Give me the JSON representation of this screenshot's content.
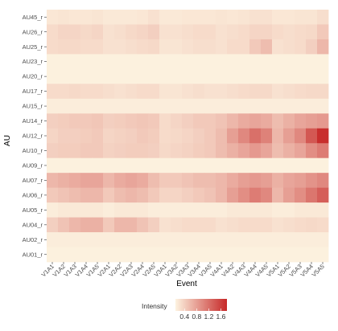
{
  "chart_data": {
    "type": "heatmap",
    "xlabel": "Event",
    "ylabel": "AU",
    "x_categories": [
      "V1A1",
      "V1A2",
      "V1A3",
      "V1A4",
      "V1A5",
      "V2A1",
      "V2A2",
      "V2A3",
      "V2A4",
      "V2A5",
      "V3A1",
      "V3A2",
      "V3A3",
      "V3A4",
      "V3A5",
      "V4A1",
      "V4A2",
      "V4A3",
      "V4A4",
      "V4A5",
      "V5A1",
      "V5A2",
      "V5A3",
      "V5A4",
      "V5A5"
    ],
    "y_categories": [
      "AU45_r",
      "AU26_r",
      "AU25_r",
      "AU23_r",
      "AU20_r",
      "AU17_r",
      "AU15_r",
      "AU14_r",
      "AU12_r",
      "AU10_r",
      "AU09_r",
      "AU07_r",
      "AU06_r",
      "AU05_r",
      "AU04_r",
      "AU02_r",
      "AU01_r"
    ],
    "values": [
      [
        0.2,
        0.22,
        0.2,
        0.2,
        0.22,
        0.18,
        0.18,
        0.18,
        0.2,
        0.25,
        0.18,
        0.18,
        0.2,
        0.2,
        0.2,
        0.22,
        0.2,
        0.22,
        0.25,
        0.25,
        0.2,
        0.2,
        0.22,
        0.22,
        0.28
      ],
      [
        0.3,
        0.35,
        0.35,
        0.32,
        0.35,
        0.25,
        0.28,
        0.32,
        0.35,
        0.4,
        0.25,
        0.25,
        0.28,
        0.3,
        0.3,
        0.25,
        0.28,
        0.3,
        0.35,
        0.35,
        0.3,
        0.28,
        0.3,
        0.32,
        0.45
      ],
      [
        0.3,
        0.32,
        0.32,
        0.3,
        0.3,
        0.25,
        0.25,
        0.28,
        0.3,
        0.32,
        0.22,
        0.22,
        0.25,
        0.28,
        0.28,
        0.25,
        0.3,
        0.3,
        0.45,
        0.55,
        0.25,
        0.28,
        0.3,
        0.4,
        0.6
      ],
      [
        0.12,
        0.12,
        0.12,
        0.12,
        0.12,
        0.12,
        0.12,
        0.12,
        0.12,
        0.12,
        0.12,
        0.12,
        0.12,
        0.12,
        0.12,
        0.12,
        0.12,
        0.12,
        0.12,
        0.12,
        0.12,
        0.12,
        0.12,
        0.12,
        0.12
      ],
      [
        0.12,
        0.12,
        0.12,
        0.12,
        0.12,
        0.12,
        0.12,
        0.12,
        0.12,
        0.12,
        0.12,
        0.12,
        0.12,
        0.12,
        0.12,
        0.12,
        0.12,
        0.12,
        0.12,
        0.12,
        0.12,
        0.12,
        0.12,
        0.12,
        0.12
      ],
      [
        0.3,
        0.3,
        0.32,
        0.3,
        0.3,
        0.28,
        0.25,
        0.28,
        0.3,
        0.3,
        0.22,
        0.22,
        0.25,
        0.28,
        0.25,
        0.25,
        0.28,
        0.3,
        0.32,
        0.32,
        0.25,
        0.28,
        0.3,
        0.32,
        0.32
      ],
      [
        0.15,
        0.15,
        0.15,
        0.15,
        0.15,
        0.15,
        0.15,
        0.15,
        0.15,
        0.15,
        0.15,
        0.15,
        0.15,
        0.15,
        0.15,
        0.15,
        0.15,
        0.15,
        0.15,
        0.15,
        0.15,
        0.15,
        0.15,
        0.15,
        0.15
      ],
      [
        0.4,
        0.42,
        0.45,
        0.45,
        0.48,
        0.4,
        0.42,
        0.45,
        0.48,
        0.45,
        0.3,
        0.35,
        0.4,
        0.45,
        0.45,
        0.5,
        0.6,
        0.7,
        0.75,
        0.7,
        0.55,
        0.65,
        0.75,
        0.8,
        0.85
      ],
      [
        0.35,
        0.4,
        0.4,
        0.42,
        0.45,
        0.35,
        0.38,
        0.4,
        0.45,
        0.42,
        0.3,
        0.32,
        0.35,
        0.4,
        0.45,
        0.55,
        0.8,
        1.0,
        1.2,
        1.05,
        0.6,
        0.8,
        1.0,
        1.4,
        1.75
      ],
      [
        0.4,
        0.42,
        0.42,
        0.45,
        0.45,
        0.38,
        0.4,
        0.42,
        0.42,
        0.4,
        0.32,
        0.35,
        0.38,
        0.42,
        0.45,
        0.55,
        0.65,
        0.75,
        0.85,
        0.75,
        0.55,
        0.65,
        0.75,
        0.95,
        1.1
      ],
      [
        0.12,
        0.12,
        0.12,
        0.12,
        0.12,
        0.12,
        0.12,
        0.12,
        0.12,
        0.12,
        0.12,
        0.12,
        0.12,
        0.12,
        0.12,
        0.12,
        0.12,
        0.12,
        0.12,
        0.12,
        0.12,
        0.12,
        0.12,
        0.12,
        0.12
      ],
      [
        0.6,
        0.65,
        0.7,
        0.75,
        0.75,
        0.6,
        0.7,
        0.75,
        0.7,
        0.55,
        0.45,
        0.45,
        0.5,
        0.55,
        0.55,
        0.6,
        0.7,
        0.8,
        0.85,
        0.8,
        0.65,
        0.75,
        0.8,
        0.9,
        1.0
      ],
      [
        0.45,
        0.5,
        0.55,
        0.6,
        0.6,
        0.45,
        0.55,
        0.6,
        0.55,
        0.45,
        0.35,
        0.35,
        0.4,
        0.45,
        0.5,
        0.6,
        0.8,
        0.95,
        1.1,
        1.0,
        0.6,
        0.8,
        0.95,
        1.15,
        1.35
      ],
      [
        0.15,
        0.18,
        0.18,
        0.18,
        0.18,
        0.15,
        0.18,
        0.18,
        0.18,
        0.15,
        0.15,
        0.15,
        0.15,
        0.15,
        0.15,
        0.15,
        0.18,
        0.18,
        0.18,
        0.18,
        0.15,
        0.15,
        0.18,
        0.18,
        0.18
      ],
      [
        0.4,
        0.5,
        0.6,
        0.65,
        0.65,
        0.45,
        0.6,
        0.6,
        0.5,
        0.4,
        0.25,
        0.28,
        0.3,
        0.3,
        0.3,
        0.25,
        0.28,
        0.3,
        0.3,
        0.3,
        0.25,
        0.28,
        0.3,
        0.32,
        0.3
      ],
      [
        0.15,
        0.15,
        0.15,
        0.15,
        0.15,
        0.15,
        0.15,
        0.15,
        0.15,
        0.15,
        0.15,
        0.15,
        0.15,
        0.15,
        0.15,
        0.15,
        0.15,
        0.15,
        0.15,
        0.15,
        0.15,
        0.15,
        0.15,
        0.15,
        0.15
      ],
      [
        0.12,
        0.12,
        0.12,
        0.12,
        0.12,
        0.12,
        0.12,
        0.12,
        0.12,
        0.12,
        0.12,
        0.12,
        0.12,
        0.12,
        0.12,
        0.12,
        0.12,
        0.12,
        0.12,
        0.12,
        0.12,
        0.12,
        0.12,
        0.12,
        0.12
      ]
    ],
    "color_scale": {
      "min_color": "#fdf3e0",
      "max_color": "#c62828",
      "min": 0.1,
      "max": 1.8
    },
    "legend": {
      "title": "Intensity",
      "position": "bottom",
      "ticks": [
        "0.4",
        "0.8",
        "1.2",
        "1.6"
      ],
      "tick_values": [
        0.4,
        0.8,
        1.2,
        1.6
      ]
    },
    "grid": false
  }
}
